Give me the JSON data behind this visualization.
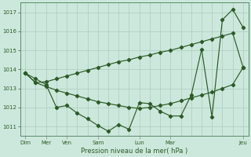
{
  "xlabel": "Pression niveau de la mer( hPa )",
  "bg_color": "#cce8dc",
  "grid_color": "#aaccbb",
  "line_color": "#2d5a27",
  "ylim": [
    1010.5,
    1017.5
  ],
  "yticks": [
    1011,
    1012,
    1013,
    1014,
    1015,
    1016,
    1017
  ],
  "n_points": 22,
  "jagged_line": [
    1013.8,
    1013.5,
    1013.2,
    1012.0,
    1012.1,
    1011.7,
    1011.4,
    1011.05,
    1010.75,
    1011.1,
    1010.85,
    1012.25,
    1012.2,
    1011.8,
    1011.55,
    1011.55,
    1012.65,
    1015.05,
    1011.5,
    1016.6,
    1017.15,
    1016.2
  ],
  "upper_line": [
    1013.8,
    1013.3,
    1013.35,
    1013.5,
    1013.65,
    1013.8,
    1013.95,
    1014.1,
    1014.25,
    1014.4,
    1014.5,
    1014.65,
    1014.75,
    1014.9,
    1015.0,
    1015.15,
    1015.3,
    1015.45,
    1015.6,
    1015.75,
    1015.9,
    1014.1
  ],
  "lower_line": [
    1013.8,
    1013.3,
    1013.1,
    1012.9,
    1012.75,
    1012.6,
    1012.45,
    1012.3,
    1012.2,
    1012.1,
    1012.0,
    1011.95,
    1012.0,
    1012.1,
    1012.2,
    1012.35,
    1012.5,
    1012.65,
    1012.8,
    1013.0,
    1013.2,
    1014.1
  ],
  "xtick_major_pos": [
    0,
    2,
    4,
    7,
    11,
    14,
    21
  ],
  "xtick_major_labels": [
    "Dim",
    "Mer",
    "Ven",
    "Sam",
    "Lun",
    "Mar",
    "Jeu"
  ],
  "minor_tick_every": 1
}
